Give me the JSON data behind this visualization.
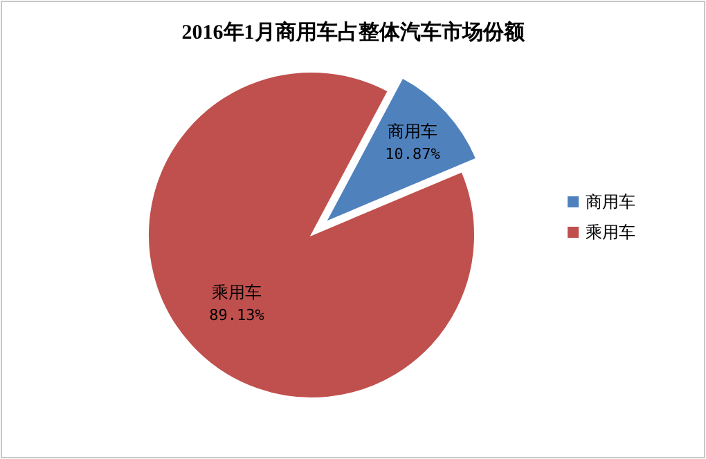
{
  "chart_data": {
    "type": "pie",
    "title": "2016年1月商用车占整体汽车市场份额",
    "categories": [
      "商用车",
      "乘用车"
    ],
    "values": [
      10.87,
      89.13
    ],
    "colors": [
      "#4f81bd",
      "#c0504d"
    ],
    "value_labels": [
      "10.87%",
      "89.13%"
    ],
    "legend": "right"
  }
}
